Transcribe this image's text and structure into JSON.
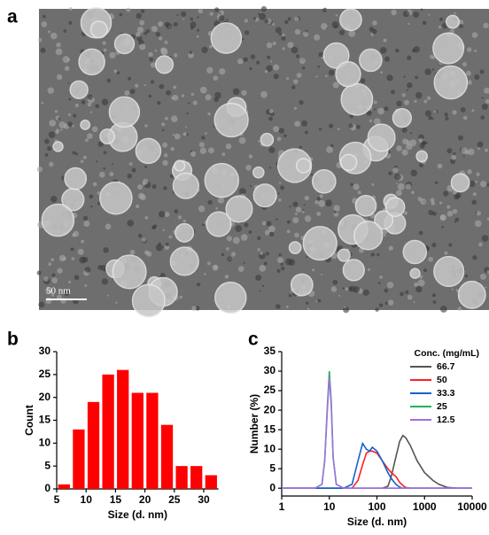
{
  "panel_labels": [
    "a",
    "b",
    "c"
  ],
  "image": {
    "scale_bar": "50 nm"
  },
  "chart_data": [
    {
      "type": "histogram",
      "xlabel": "Size (d. nm)",
      "ylabel": "Count",
      "bins": [
        5,
        7.5,
        10,
        12.5,
        15,
        17.5,
        20,
        22.5,
        25,
        27.5,
        30,
        32.5
      ],
      "values": [
        1,
        13,
        19,
        25,
        26,
        21,
        21,
        14,
        5,
        5,
        3
      ],
      "color": "#ff0000",
      "xlim": [
        5,
        32.5
      ],
      "xticks": [
        5,
        10,
        15,
        20,
        25,
        30
      ],
      "ylim": [
        0,
        30
      ],
      "yticks": [
        0,
        5,
        10,
        15,
        20,
        25,
        30
      ]
    },
    {
      "type": "line",
      "xlabel": "Size (d. nm)",
      "ylabel": "Number (%)",
      "xscale": "log",
      "legend_title": "Conc. (mg/mL)",
      "legend": "top-right",
      "x": [
        1,
        5,
        7,
        8,
        9,
        10,
        11,
        12,
        14,
        20,
        30,
        40,
        50,
        60,
        70,
        80,
        100,
        130,
        170,
        200,
        250,
        300,
        350,
        400,
        500,
        700,
        1000,
        1500,
        2000,
        3000,
        5000,
        10000
      ],
      "series": [
        {
          "name": "66.7",
          "color": "#555555",
          "values": [
            0,
            0,
            0,
            0,
            0,
            0,
            0,
            0,
            0,
            0,
            0,
            0,
            0,
            0,
            0,
            0,
            0,
            0,
            0.5,
            3,
            8,
            12,
            13.5,
            13,
            11,
            7,
            4,
            2,
            1,
            0.2,
            0,
            0
          ]
        },
        {
          "name": "50",
          "color": "#ff2020",
          "values": [
            0,
            0,
            0,
            0,
            0,
            0,
            0,
            0,
            0,
            0,
            0,
            2,
            6,
            9,
            9.5,
            9.5,
            9,
            7,
            5,
            4,
            3,
            1.5,
            0.7,
            0.2,
            0,
            0,
            0,
            0,
            0,
            0,
            0,
            0
          ]
        },
        {
          "name": "33.3",
          "color": "#1560d0",
          "values": [
            0,
            0,
            0,
            0,
            0,
            0,
            0,
            0,
            0,
            0,
            1,
            7,
            11.5,
            10,
            9.5,
            10.5,
            9.5,
            7,
            4,
            2.5,
            1,
            0.3,
            0,
            0,
            0,
            0,
            0,
            0,
            0,
            0,
            0,
            0
          ]
        },
        {
          "name": "25",
          "color": "#20b060",
          "values": [
            0,
            0,
            1,
            7,
            20,
            30,
            22,
            8,
            1,
            0,
            0,
            0,
            0,
            0,
            0,
            0,
            0,
            0,
            0,
            0,
            0,
            0,
            0,
            0,
            0,
            0,
            0,
            0,
            0,
            0,
            0,
            0
          ]
        },
        {
          "name": "12.5",
          "color": "#a070e0",
          "values": [
            0,
            0,
            1,
            7,
            19,
            28.5,
            21,
            8,
            1,
            0,
            0,
            0,
            0,
            0,
            0,
            0,
            0,
            0,
            0,
            0,
            0,
            0,
            0,
            0,
            0,
            0,
            0,
            0,
            0,
            0,
            0,
            0
          ]
        }
      ],
      "xlim": [
        1,
        10000
      ],
      "xticks": [
        1,
        10,
        100,
        1000,
        10000
      ],
      "ylim": [
        -2,
        35
      ],
      "yticks": [
        0,
        5,
        10,
        15,
        20,
        25,
        30,
        35
      ]
    }
  ]
}
